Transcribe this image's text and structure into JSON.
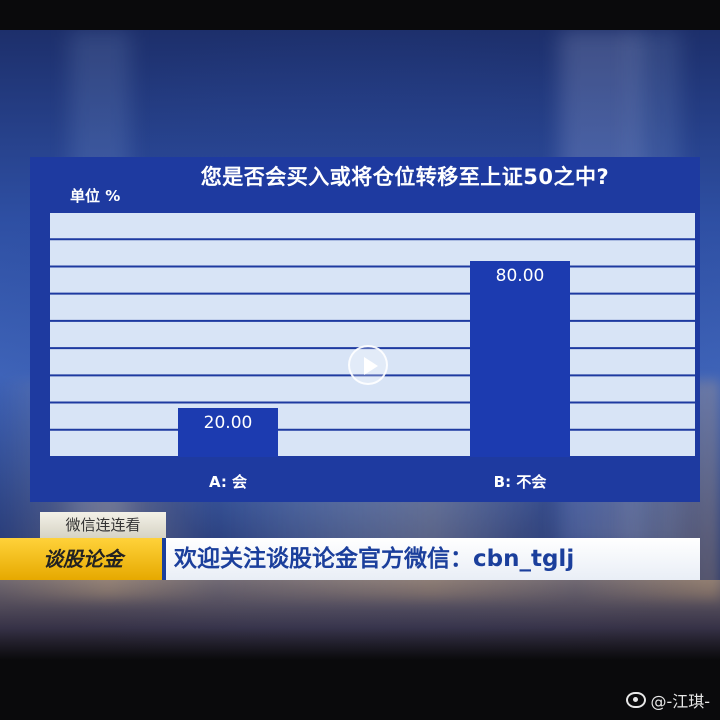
{
  "chart_data": {
    "type": "bar",
    "title": "您是否会买入或将仓位转移至上证50之中?",
    "unit_label": "单位 %",
    "categories": [
      "A: 会",
      "B: 不会"
    ],
    "values": [
      20.0,
      80.0
    ],
    "value_labels": [
      "20.00",
      "80.00"
    ],
    "ylim": [
      0,
      100
    ],
    "grid": true,
    "colors": {
      "panel": "#1e3aa0",
      "bar": "#1c3bb0",
      "grid": "#ffffff"
    }
  },
  "lower_third": {
    "tag": "微信连连看",
    "logo": "谈股论金",
    "message": "欢迎关注谈股论金官方微信：cbn_tglj"
  },
  "watermark": {
    "icon": "weibo-icon",
    "text": "@-江琪-"
  }
}
